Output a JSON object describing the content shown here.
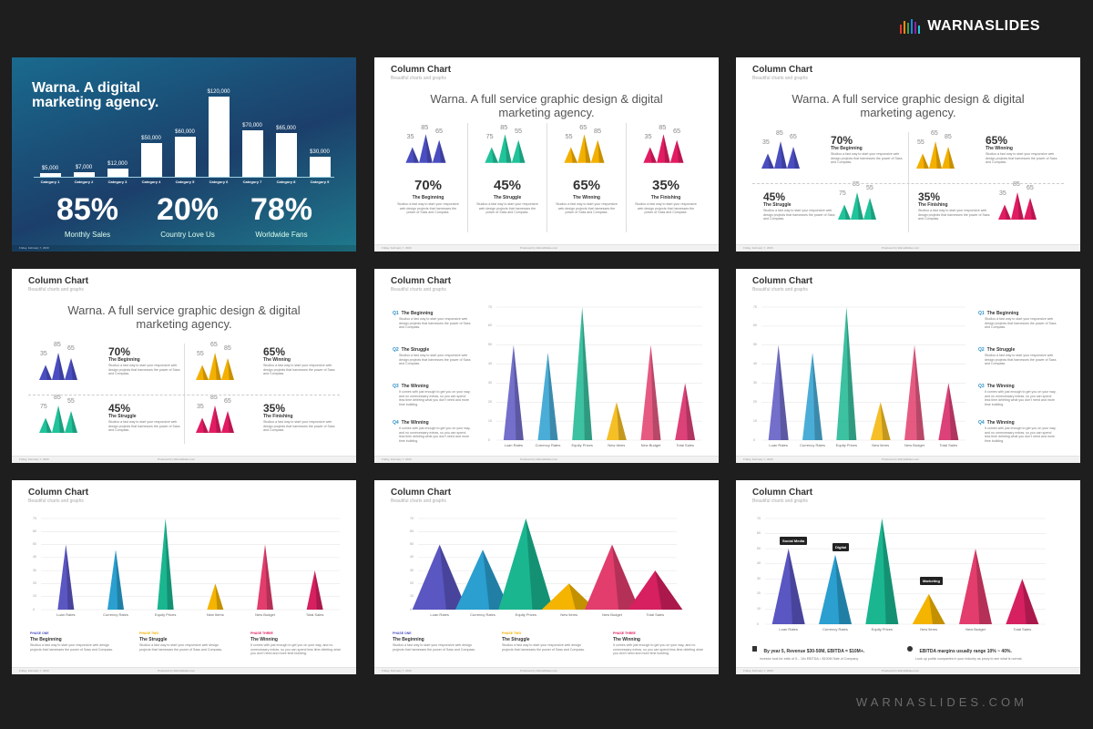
{
  "brand": {
    "name": "WARNASLIDES",
    "footer": "WARNASLIDES.COM"
  },
  "common": {
    "slide_title": "Column Chart",
    "slide_sub": "Beautiful charts and graphs",
    "footer_date": "Friday, February 7, 2020",
    "footer_mid": "Produced by WarnaSlides.com",
    "headline_1": "Warna. A full service graphic design & digital",
    "headline_2": "marketing agency.",
    "body": "Studioo a fast way to start your responsive web design projects that harnesses the power of Sass and Compass.",
    "body_long": "It comes with just enough to get you on your way, and no unnecessary extras, so you can spend less time deleting what you don't need and more time building.",
    "phase_one": "PHASE ONE",
    "phase_two": "PHASE TWO",
    "phase_three": "PHASE THREE"
  },
  "slide1": {
    "title_1": "Warna. A digital",
    "title_2": "marketing agency.",
    "bars": [
      {
        "cat": "Category 1",
        "value": 5000,
        "label": "$5,000"
      },
      {
        "cat": "Category 2",
        "value": 7000,
        "label": "$7,000"
      },
      {
        "cat": "Category 3",
        "value": 12000,
        "label": "$12,000"
      },
      {
        "cat": "Category 4",
        "value": 50000,
        "label": "$50,000"
      },
      {
        "cat": "Category 5",
        "value": 60000,
        "label": "$60,000"
      },
      {
        "cat": "Category 6",
        "value": 120000,
        "label": "$120,000"
      },
      {
        "cat": "Category 7",
        "value": 70000,
        "label": "$70,000"
      },
      {
        "cat": "Category 8",
        "value": 65000,
        "label": "$65,000"
      },
      {
        "cat": "Category 9",
        "value": 30000,
        "label": "$30,000"
      }
    ],
    "stats": [
      {
        "value": "85%",
        "label": "Monthly Sales"
      },
      {
        "value": "20%",
        "label": "Country Love Us"
      },
      {
        "value": "78%",
        "label": "Worldwide Fans"
      }
    ]
  },
  "groups": [
    {
      "pct": "70%",
      "label": "The Beginning",
      "color": "#4a4ec0",
      "nums": [
        "35",
        "85",
        "65"
      ]
    },
    {
      "pct": "45%",
      "label": "The Struggle",
      "color": "#21c39a",
      "nums": [
        "75",
        "85",
        "55"
      ]
    },
    {
      "pct": "65%",
      "label": "The Winning",
      "color": "#f4b000",
      "nums": [
        "55",
        "65",
        "85"
      ]
    },
    {
      "pct": "35%",
      "label": "The Finishing",
      "color": "#e21c62",
      "nums": [
        "35",
        "85",
        "65"
      ]
    }
  ],
  "quarters": [
    {
      "q": "Q1",
      "label": "The Beginning"
    },
    {
      "q": "Q2",
      "label": "The Struggle"
    },
    {
      "q": "Q3",
      "label": "The Winning"
    },
    {
      "q": "Q4",
      "label": "The Winning"
    }
  ],
  "chart_data": {
    "type": "bar",
    "categories": [
      "Loan Rates",
      "Currency Rates",
      "Equity Prices",
      "New Items",
      "New Budget",
      "Total Sales"
    ],
    "values": [
      50,
      46,
      70,
      20,
      50,
      30
    ],
    "ylim": [
      0,
      70
    ],
    "yticks": [
      "0",
      "10",
      "20",
      "30",
      "40",
      "50",
      "60",
      "70"
    ],
    "colors": [
      "#5a56c2",
      "#2a9fd0",
      "#1ab690",
      "#f4b400",
      "#e23d6c",
      "#d62060"
    ]
  },
  "callouts": {
    "social": "Social Media",
    "digital": "Digital",
    "marketing": "Marketing"
  },
  "slide9": {
    "note1_title": "By year 5, Revenue $30-50M, EBITDA = $10M+.",
    "note1_text": "Investor look for exits of 5... 10x EBITDA = $100M Sale of Company.",
    "note2_title": "EBITDA margins usually range 10% ~ 40%.",
    "note2_text": "Look up public companies in your industry as proxy to see what is normal."
  }
}
